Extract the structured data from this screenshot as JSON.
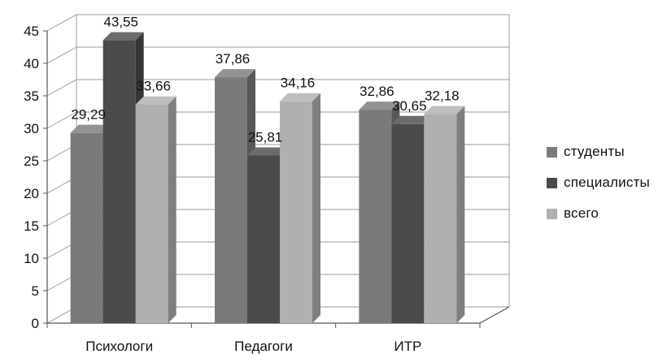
{
  "chart_data": {
    "type": "bar",
    "style": "3d-clustered-column",
    "title": "",
    "xlabel": "",
    "ylabel": "",
    "categories": [
      "Психологи",
      "Педагоги",
      "ИТР"
    ],
    "series": [
      {
        "name": "студенты",
        "values": [
          29.29,
          37.86,
          32.86
        ],
        "color": "#7a7a7a"
      },
      {
        "name": "специалисты",
        "values": [
          43.55,
          25.81,
          30.65
        ],
        "color": "#4b4b4b"
      },
      {
        "name": "всего",
        "values": [
          33.66,
          34.16,
          32.18
        ],
        "color": "#b0b0b0"
      }
    ],
    "data_labels": [
      [
        "29,29",
        "37,86",
        "32,86"
      ],
      [
        "43,55",
        "25,81",
        "30,65"
      ],
      [
        "33,66",
        "34,16",
        "32,18"
      ]
    ],
    "ylim": [
      0,
      45
    ],
    "y_ticks": [
      "0",
      "5",
      "10",
      "15",
      "20",
      "25",
      "30",
      "35",
      "40",
      "45"
    ],
    "grid": true,
    "legend_position": "right"
  }
}
